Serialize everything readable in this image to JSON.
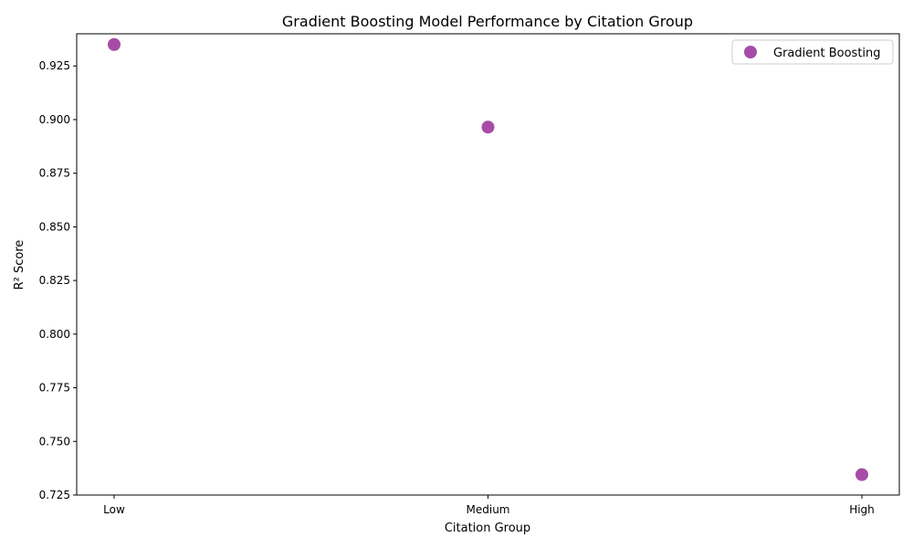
{
  "chart_data": {
    "type": "scatter",
    "title": "Gradient Boosting Model Performance by Citation Group",
    "xlabel": "Citation Group",
    "ylabel": "R² Score",
    "categories": [
      "Low",
      "Medium",
      "High"
    ],
    "series": [
      {
        "name": "Gradient Boosting",
        "values": [
          0.935,
          0.8965,
          0.7345
        ],
        "color": "#800080"
      }
    ],
    "ylim": [
      0.725,
      0.94
    ],
    "yticks": [
      "0.725",
      "0.750",
      "0.775",
      "0.800",
      "0.825",
      "0.850",
      "0.875",
      "0.900",
      "0.925"
    ],
    "grid": false,
    "legend": "top-right"
  }
}
